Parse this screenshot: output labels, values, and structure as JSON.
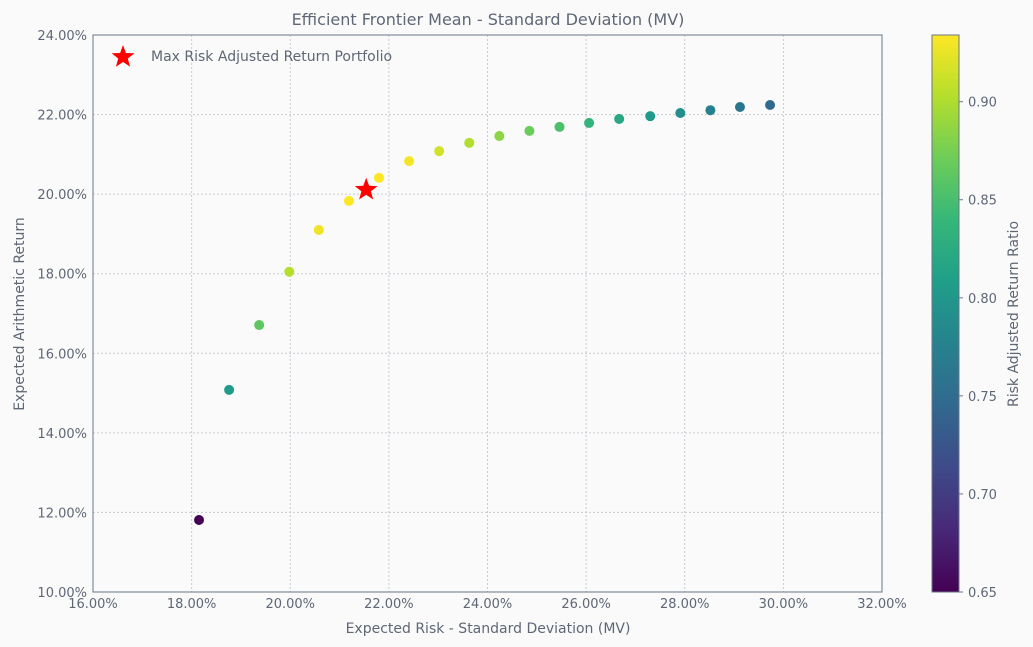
{
  "chart_data": {
    "type": "scatter",
    "title": "Efficient Frontier Mean - Standard Deviation (MV)",
    "xlabel": "Expected Risk - Standard Deviation (MV)",
    "ylabel": "Expected Arithmetic Return",
    "xlim": [
      16,
      32
    ],
    "ylim": [
      10,
      24
    ],
    "grid": true,
    "x_ticks": [
      "16.00%",
      "18.00%",
      "20.00%",
      "22.00%",
      "24.00%",
      "26.00%",
      "28.00%",
      "30.00%",
      "32.00%"
    ],
    "y_ticks": [
      "10.00%",
      "12.00%",
      "14.00%",
      "16.00%",
      "18.00%",
      "20.00%",
      "22.00%",
      "24.00%"
    ],
    "points": {
      "x": [
        18.15,
        18.76,
        19.37,
        19.98,
        20.58,
        21.19,
        21.8,
        22.41,
        23.02,
        23.63,
        24.24,
        24.85,
        25.46,
        26.06,
        26.67,
        27.3,
        27.91,
        28.52,
        29.12,
        29.73
      ],
      "y": [
        11.81,
        15.08,
        16.71,
        18.05,
        19.1,
        19.83,
        20.41,
        20.83,
        21.08,
        21.29,
        21.46,
        21.59,
        21.69,
        21.79,
        21.89,
        21.96,
        22.04,
        22.11,
        22.19,
        22.24
      ]
    },
    "max_portfolio": {
      "x": 21.54,
      "y": 20.11,
      "label": "Max Risk Adjusted Return Portfolio",
      "color": "#ff0000"
    },
    "legend": {
      "placement": "top-left",
      "entries": [
        "Max Risk Adjusted Return Portfolio"
      ]
    },
    "colorbar": {
      "label": "Risk Adjusted Return Ratio",
      "range": [
        0.65,
        0.934
      ],
      "ticks": [
        "0.65",
        "0.70",
        "0.75",
        "0.80",
        "0.85",
        "0.90"
      ],
      "colormap": "viridis"
    }
  }
}
